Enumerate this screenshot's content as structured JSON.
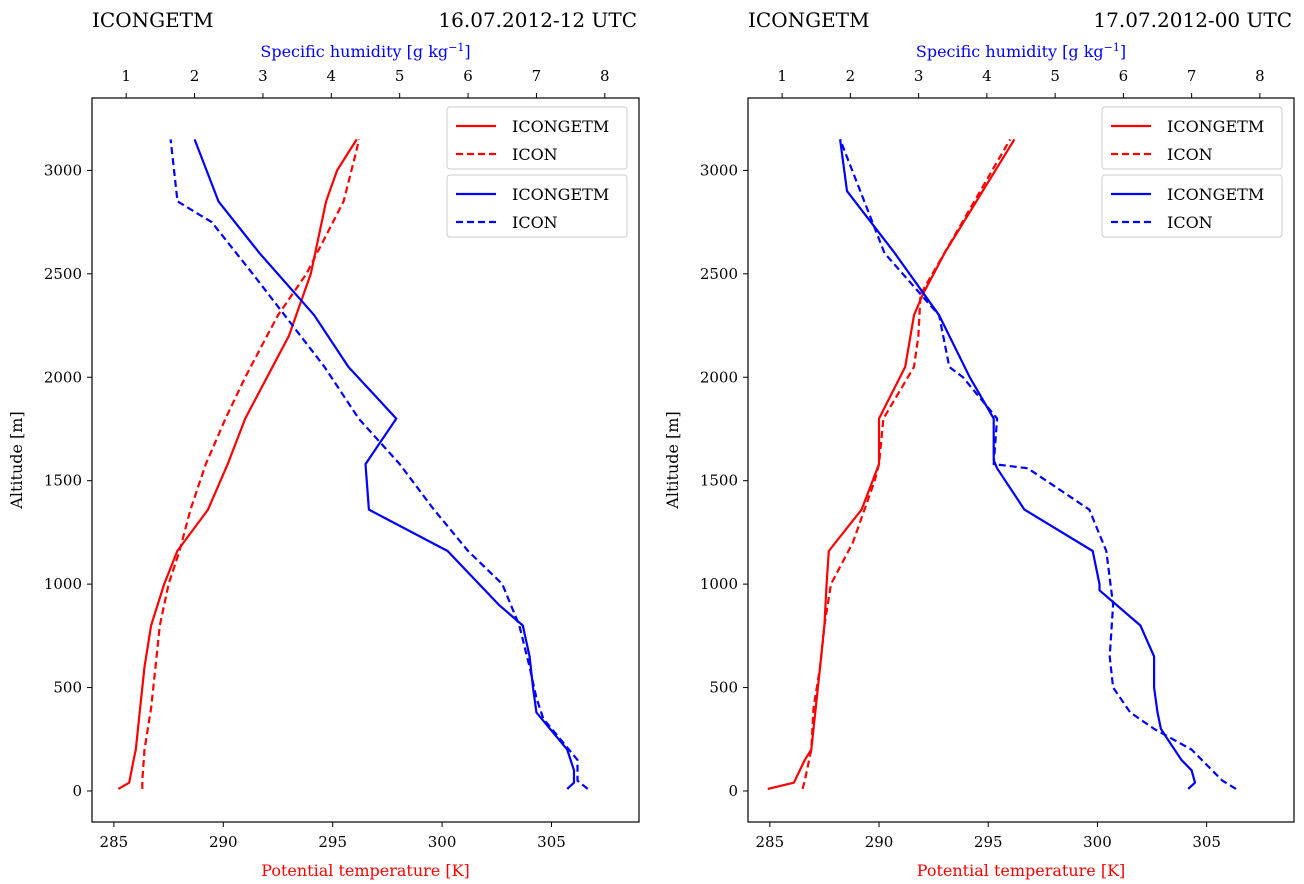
{
  "colors": {
    "temperature": "#ff0000",
    "humidity": "#0000ff",
    "axis": "#000000"
  },
  "chart_data": [
    {
      "type": "line",
      "title_left": "ICONGETM",
      "title_right": "16.07.2012-12 UTC",
      "xlabel": "Potential temperature [K]",
      "x2label": "Specific humidity [g kg",
      "x2label_sup": "−1",
      "x2label_end": "]",
      "ylabel": "Altitude [m]",
      "xlim": [
        284,
        309
      ],
      "x2lim": [
        0.5,
        8.5
      ],
      "ylim": [
        -150,
        3350
      ],
      "xticks": [
        285,
        290,
        295,
        300,
        305
      ],
      "x2ticks": [
        1,
        2,
        3,
        4,
        5,
        6,
        7,
        8
      ],
      "yticks": [
        0,
        500,
        1000,
        1500,
        2000,
        2500,
        3000
      ],
      "grid": false,
      "legend_groups": [
        [
          {
            "label": "ICONGETM",
            "series": 0
          },
          {
            "label": "ICON",
            "series": 1
          }
        ],
        [
          {
            "label": "ICONGETM",
            "series": 2
          },
          {
            "label": "ICON",
            "series": 3
          }
        ]
      ],
      "series": [
        {
          "name": "ICONGETM",
          "variable": "temperature",
          "style": "solid",
          "x": [
            285.2,
            285.7,
            285.9,
            286.0,
            286.2,
            286.4,
            286.7,
            287.3,
            287.9,
            289.3,
            290.2,
            291.0,
            292.0,
            293.0,
            294.0,
            294.7,
            295.2,
            296.1
          ],
          "y": [
            10,
            40,
            150,
            200,
            400,
            600,
            800,
            1000,
            1160,
            1360,
            1580,
            1800,
            2000,
            2200,
            2500,
            2850,
            3000,
            3150
          ]
        },
        {
          "name": "ICON",
          "variable": "temperature",
          "style": "dashed",
          "x": [
            286.3,
            286.3,
            286.4,
            286.7,
            286.9,
            287.1,
            287.5,
            288.0,
            288.5,
            289.2,
            290.1,
            291.0,
            292.0,
            292.5,
            293.8,
            295.5,
            296.1,
            296.2
          ],
          "y": [
            10,
            50,
            200,
            400,
            600,
            800,
            1000,
            1160,
            1360,
            1580,
            1800,
            2000,
            2200,
            2300,
            2500,
            2850,
            3100,
            3150
          ]
        },
        {
          "name": "ICONGETM",
          "variable": "humidity",
          "style": "solid",
          "x": [
            7.45,
            7.55,
            7.55,
            7.45,
            7.2,
            7.0,
            6.95,
            6.9,
            6.8,
            6.45,
            5.7,
            4.55,
            4.5,
            4.95,
            4.25,
            3.75,
            2.95,
            2.35,
            2.0
          ],
          "y": [
            10,
            40,
            100,
            200,
            300,
            380,
            500,
            650,
            800,
            900,
            1160,
            1360,
            1580,
            1800,
            2050,
            2300,
            2600,
            2850,
            3150
          ]
        },
        {
          "name": "ICON",
          "variable": "humidity",
          "style": "dashed",
          "x": [
            7.75,
            7.6,
            7.6,
            7.35,
            7.1,
            7.0,
            6.9,
            6.75,
            6.5,
            6.0,
            5.5,
            5.0,
            4.4,
            3.9,
            2.85,
            2.25,
            1.75,
            1.65
          ],
          "y": [
            10,
            50,
            150,
            250,
            350,
            450,
            600,
            800,
            1000,
            1160,
            1360,
            1580,
            1800,
            2050,
            2500,
            2750,
            2850,
            3150
          ]
        }
      ]
    },
    {
      "type": "line",
      "title_left": "ICONGETM",
      "title_right": "17.07.2012-00 UTC",
      "xlabel": "Potential temperature [K]",
      "x2label": "Specific humidity [g kg",
      "x2label_sup": "−1",
      "x2label_end": "]",
      "ylabel": "Altitude [m]",
      "xlim": [
        284,
        309
      ],
      "x2lim": [
        0.5,
        8.5
      ],
      "ylim": [
        -150,
        3350
      ],
      "xticks": [
        285,
        290,
        295,
        300,
        305
      ],
      "x2ticks": [
        1,
        2,
        3,
        4,
        5,
        6,
        7,
        8
      ],
      "yticks": [
        0,
        500,
        1000,
        1500,
        2000,
        2500,
        3000
      ],
      "grid": false,
      "legend_groups": [
        [
          {
            "label": "ICONGETM",
            "series": 0
          },
          {
            "label": "ICON",
            "series": 1
          }
        ],
        [
          {
            "label": "ICONGETM",
            "series": 2
          },
          {
            "label": "ICON",
            "series": 3
          }
        ]
      ],
      "series": [
        {
          "name": "ICONGETM",
          "variable": "temperature",
          "style": "solid",
          "x": [
            284.9,
            286.1,
            286.6,
            286.9,
            287.1,
            287.3,
            287.5,
            287.6,
            287.7,
            289.2,
            290.0,
            290.0,
            290.0,
            291.2,
            291.6,
            292.0,
            293.0,
            296.2
          ],
          "y": [
            10,
            40,
            150,
            200,
            400,
            600,
            800,
            1000,
            1160,
            1360,
            1580,
            1650,
            1800,
            2050,
            2300,
            2400,
            2600,
            3150
          ]
        },
        {
          "name": "ICON",
          "variable": "temperature",
          "style": "dashed",
          "x": [
            286.5,
            286.6,
            286.9,
            287.0,
            287.3,
            287.5,
            287.8,
            288.8,
            289.8,
            290.0,
            290.2,
            291.6,
            291.8,
            291.9,
            296.0
          ],
          "y": [
            10,
            50,
            200,
            400,
            600,
            800,
            1000,
            1200,
            1500,
            1580,
            1800,
            2050,
            2200,
            2400,
            3150
          ]
        },
        {
          "name": "ICONGETM",
          "variable": "humidity",
          "style": "solid",
          "x": [
            6.95,
            7.05,
            7.0,
            6.85,
            6.65,
            6.55,
            6.5,
            6.45,
            6.45,
            6.25,
            5.65,
            5.65,
            5.55,
            4.55,
            4.15,
            4.1,
            4.1,
            3.75,
            3.3,
            2.65,
            1.95,
            1.85
          ],
          "y": [
            10,
            40,
            100,
            150,
            250,
            300,
            380,
            500,
            650,
            800,
            970,
            1000,
            1160,
            1360,
            1560,
            1600,
            1800,
            2000,
            2300,
            2600,
            2900,
            3150
          ]
        },
        {
          "name": "ICON",
          "variable": "humidity",
          "style": "dashed",
          "x": [
            7.65,
            7.45,
            7.0,
            6.45,
            6.1,
            5.85,
            5.8,
            5.85,
            5.75,
            5.5,
            4.6,
            4.1,
            4.15,
            4.15,
            3.65,
            3.45,
            3.3,
            2.5,
            1.85
          ],
          "y": [
            10,
            50,
            200,
            300,
            380,
            500,
            650,
            900,
            1160,
            1360,
            1560,
            1580,
            1800,
            1800,
            2000,
            2050,
            2300,
            2600,
            3150
          ]
        }
      ]
    }
  ]
}
